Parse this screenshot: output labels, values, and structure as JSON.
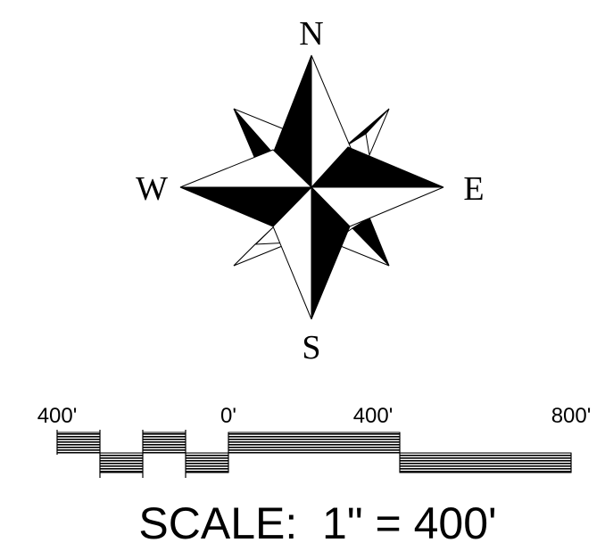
{
  "compass": {
    "north": "N",
    "east": "E",
    "south": "S",
    "west": "W"
  },
  "scale_bar": {
    "tick_labels": [
      "400'",
      "0'",
      "400'",
      "800'"
    ],
    "caption": "SCALE:  1\" = 400'"
  },
  "colors": {
    "ink": "#000000",
    "paper": "#ffffff"
  }
}
